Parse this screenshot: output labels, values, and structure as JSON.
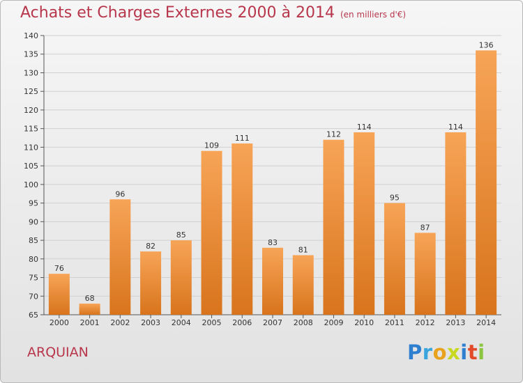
{
  "title": "Achats et Charges Externes 2000 à 2014",
  "subtitle": "(en milliers d'€)",
  "place": "ARQUIAN",
  "logo": {
    "text": "Proxiti",
    "colors": [
      "#2e7fd0",
      "#3aa5dc",
      "#e8a21d",
      "#c8d81e",
      "#2e7fd0",
      "#e34a2a",
      "#8bc43f"
    ]
  },
  "colors": {
    "title": "#b8364b",
    "bar_top": "#f7a457",
    "bar_bottom": "#d8741c"
  },
  "chart_data": {
    "type": "bar",
    "title": "Achats et Charges Externes 2000 à 2014",
    "subtitle": "(en milliers d'€)",
    "categories": [
      "2000",
      "2001",
      "2002",
      "2003",
      "2004",
      "2005",
      "2006",
      "2007",
      "2008",
      "2009",
      "2010",
      "2011",
      "2012",
      "2013",
      "2014"
    ],
    "values": [
      76,
      68,
      96,
      82,
      85,
      109,
      111,
      83,
      81,
      112,
      114,
      95,
      87,
      114,
      136
    ],
    "ylim": [
      65,
      140
    ],
    "yticks": [
      65,
      70,
      75,
      80,
      85,
      90,
      95,
      100,
      105,
      110,
      115,
      120,
      125,
      130,
      135,
      140
    ],
    "grid": true,
    "data_labels": true,
    "xlabel": "",
    "ylabel": ""
  }
}
